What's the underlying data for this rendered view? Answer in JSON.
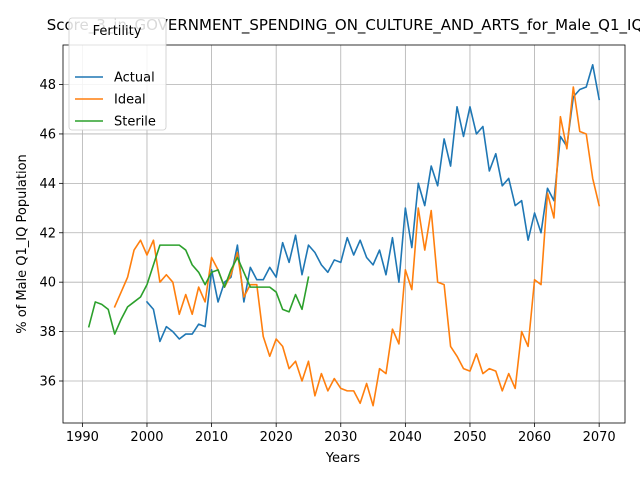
{
  "chart_data": {
    "type": "line",
    "title": "Score_3_in_GOVERNMENT_SPENDING_ON_CULTURE_AND_ARTS_for_Male_Q1_IQ",
    "xlabel": "Years",
    "ylabel": "% of Male Q1_IQ Population",
    "xlim": [
      1987,
      2074
    ],
    "ylim": [
      34.3,
      49.6
    ],
    "xticks": [
      1990,
      2000,
      2010,
      2020,
      2030,
      2040,
      2050,
      2060,
      2070
    ],
    "yticks": [
      36,
      38,
      40,
      42,
      44,
      46,
      48
    ],
    "grid": true,
    "legend": {
      "title": "Fertility",
      "placement": "top-left"
    },
    "series": [
      {
        "name": "Actual",
        "color": "#1f77b4",
        "x": [
          2000,
          2001,
          2002,
          2003,
          2004,
          2005,
          2006,
          2007,
          2008,
          2009,
          2010,
          2011,
          2012,
          2013,
          2014,
          2015,
          2016,
          2017,
          2018,
          2019,
          2020,
          2021,
          2022,
          2023,
          2024,
          2025,
          2026,
          2027,
          2028,
          2029,
          2030,
          2031,
          2032,
          2033,
          2034,
          2035,
          2036,
          2037,
          2038,
          2039,
          2040,
          2041,
          2042,
          2043,
          2044,
          2045,
          2046,
          2047,
          2048,
          2049,
          2050,
          2051,
          2052,
          2053,
          2054,
          2055,
          2056,
          2057,
          2058,
          2059,
          2060,
          2061,
          2062,
          2063,
          2064,
          2065,
          2066,
          2067,
          2068,
          2069,
          2070
        ],
        "values": [
          39.2,
          38.9,
          37.6,
          38.2,
          38.0,
          37.7,
          37.9,
          37.9,
          38.3,
          38.2,
          40.5,
          39.2,
          40.0,
          40.2,
          41.5,
          39.2,
          40.6,
          40.1,
          40.1,
          40.6,
          40.2,
          41.6,
          40.8,
          41.9,
          40.3,
          41.5,
          41.2,
          40.7,
          40.4,
          40.9,
          40.8,
          41.8,
          41.1,
          41.7,
          41.0,
          40.7,
          41.3,
          40.3,
          41.8,
          40.0,
          43.0,
          41.4,
          44.0,
          43.1,
          44.7,
          43.9,
          45.8,
          44.7,
          47.1,
          45.9,
          47.1,
          46.0,
          46.3,
          44.5,
          45.2,
          43.9,
          44.2,
          43.1,
          43.3,
          41.7,
          42.8,
          42.0,
          43.8,
          43.3,
          45.9,
          45.5,
          47.5,
          47.8,
          47.9,
          48.8,
          47.4
        ]
      },
      {
        "name": "Ideal",
        "color": "#ff7f0e",
        "x": [
          1995,
          1996,
          1997,
          1998,
          1999,
          2000,
          2001,
          2002,
          2003,
          2004,
          2005,
          2006,
          2007,
          2008,
          2009,
          2010,
          2011,
          2012,
          2013,
          2014,
          2015,
          2016,
          2017,
          2018,
          2019,
          2020,
          2021,
          2022,
          2023,
          2024,
          2025,
          2026,
          2027,
          2028,
          2029,
          2030,
          2031,
          2032,
          2033,
          2034,
          2035,
          2036,
          2037,
          2038,
          2039,
          2040,
          2041,
          2042,
          2043,
          2044,
          2045,
          2046,
          2047,
          2048,
          2049,
          2050,
          2051,
          2052,
          2053,
          2054,
          2055,
          2056,
          2057,
          2058,
          2059,
          2060,
          2061,
          2062,
          2063,
          2064,
          2065,
          2066,
          2067,
          2068,
          2069,
          2070
        ],
        "values": [
          39.0,
          39.6,
          40.2,
          41.3,
          41.7,
          41.1,
          41.7,
          40.0,
          40.3,
          40.0,
          38.7,
          39.5,
          38.7,
          39.8,
          39.2,
          41.0,
          40.5,
          39.8,
          40.3,
          41.2,
          39.4,
          39.9,
          39.9,
          37.8,
          37.0,
          37.7,
          37.4,
          36.5,
          36.8,
          36.0,
          36.8,
          35.4,
          36.3,
          35.6,
          36.1,
          35.7,
          35.6,
          35.6,
          35.1,
          35.9,
          35.0,
          36.5,
          36.3,
          38.1,
          37.5,
          40.5,
          39.7,
          43.0,
          41.3,
          42.9,
          40.0,
          39.9,
          37.4,
          37.0,
          36.5,
          36.4,
          37.1,
          36.3,
          36.5,
          36.4,
          35.6,
          36.3,
          35.7,
          38.0,
          37.4,
          40.1,
          39.9,
          43.6,
          42.6,
          46.7,
          45.4,
          47.9,
          46.1,
          46.0,
          44.2,
          43.1
        ]
      },
      {
        "name": "Sterile",
        "color": "#2ca02c",
        "x": [
          1991,
          1992,
          1993,
          1994,
          1995,
          1996,
          1997,
          1998,
          1999,
          2000,
          2001,
          2002,
          2003,
          2004,
          2005,
          2006,
          2007,
          2008,
          2009,
          2010,
          2011,
          2012,
          2013,
          2014,
          2015,
          2016,
          2017,
          2018,
          2019,
          2020,
          2021,
          2022,
          2023,
          2024,
          2025
        ],
        "values": [
          38.2,
          39.2,
          39.1,
          38.9,
          37.9,
          38.5,
          39.0,
          39.2,
          39.4,
          39.9,
          40.7,
          41.5,
          41.5,
          41.5,
          41.5,
          41.3,
          40.7,
          40.4,
          39.9,
          40.4,
          40.5,
          39.8,
          40.5,
          41.0,
          40.4,
          39.8,
          39.8,
          39.8,
          39.8,
          39.6,
          38.9,
          38.8,
          39.5,
          38.9,
          40.2
        ]
      }
    ]
  }
}
